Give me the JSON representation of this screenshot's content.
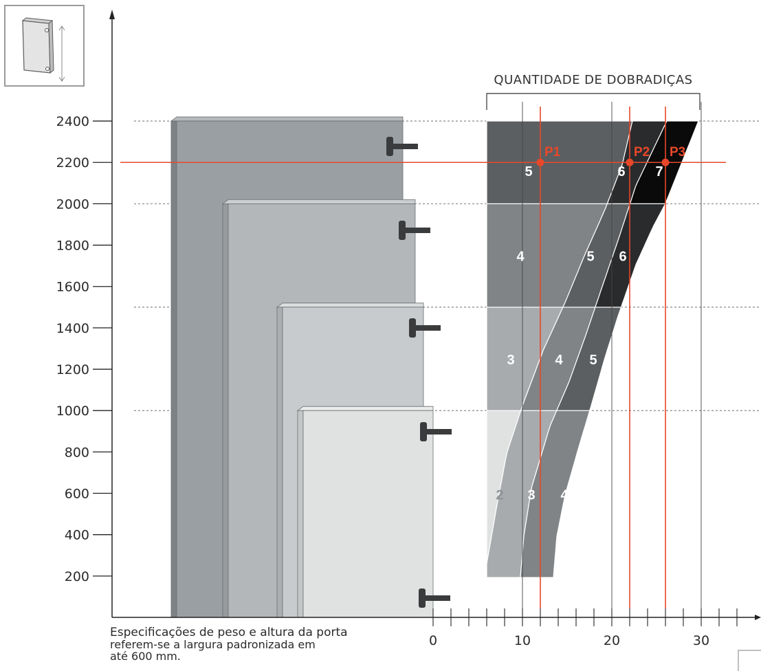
{
  "title": "QUANTIDADE DE DOBRADIÇAS",
  "note": {
    "line1": "Especificações de peso e altura da porta",
    "line2": "referem-se a largura padronizada em",
    "line3": "até 600 mm."
  },
  "icon": "door-height-icon",
  "colors": {
    "accent": "#e8472a",
    "door_dark": "#9a9fa3",
    "door_light": "#e2e4e4",
    "band_2": "#e0e2e2",
    "band_3": "#a8abad",
    "band_4": "#808486",
    "band_5": "#5c5f61",
    "band_6": "#2a2b2d",
    "band_7": "#0a0a0a"
  },
  "chart_data": {
    "type": "area",
    "title": "QUANTIDADE DE DOBRADIÇAS",
    "xlabel": "",
    "ylabel": "",
    "xlim": [
      -35,
      36
    ],
    "ylim": [
      0,
      2500
    ],
    "x_ticks": [
      0,
      10,
      20,
      30
    ],
    "y_ticks": [
      200,
      400,
      600,
      800,
      1000,
      1200,
      1400,
      1600,
      1800,
      2000,
      2200,
      2400
    ],
    "height_levels": [
      1000,
      1500,
      2000,
      2400
    ],
    "door_heights": [
      2400,
      2000,
      1500,
      1000
    ],
    "hinge_rows": [
      {
        "height_range": [
          200,
          1000
        ],
        "counts": [
          "2",
          "3",
          "4"
        ]
      },
      {
        "height_range": [
          1000,
          1500
        ],
        "counts": [
          "3",
          "4",
          "5"
        ]
      },
      {
        "height_range": [
          1500,
          2000
        ],
        "counts": [
          "4",
          "5",
          "6"
        ]
      },
      {
        "height_range": [
          2000,
          2400
        ],
        "counts": [
          "5",
          "6",
          "7"
        ]
      }
    ],
    "points": [
      {
        "name": "P1",
        "x": 12,
        "y": 2200
      },
      {
        "name": "P2",
        "x": 22,
        "y": 2200
      },
      {
        "name": "P3",
        "x": 26,
        "y": 2200
      }
    ]
  }
}
